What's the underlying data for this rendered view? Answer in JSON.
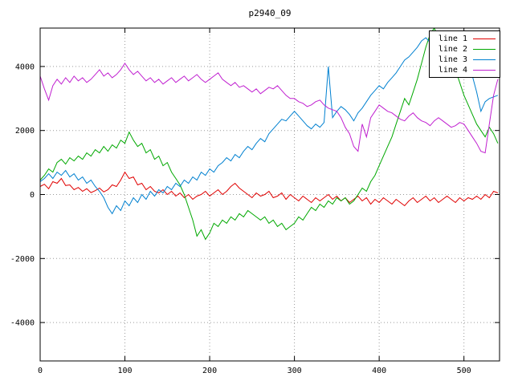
{
  "chart_data": {
    "type": "line",
    "title": "p2940_09",
    "xlabel": "",
    "ylabel": "",
    "xlim": [
      0,
      542
    ],
    "ylim": [
      -5200,
      5200
    ],
    "xticks": [
      0,
      100,
      200,
      300,
      400,
      500
    ],
    "yticks": [
      -4000,
      -2000,
      0,
      2000,
      4000
    ],
    "grid": true,
    "grid_style": "dotted",
    "legend_position": "top-right",
    "x_start": 0,
    "x_step": 5,
    "series": [
      {
        "name": "line 1",
        "color": "#e00000",
        "values": [
          250,
          320,
          180,
          400,
          350,
          500,
          280,
          300,
          150,
          220,
          100,
          180,
          60,
          120,
          200,
          80,
          150,
          300,
          250,
          450,
          700,
          500,
          550,
          300,
          350,
          150,
          250,
          100,
          50,
          150,
          0,
          100,
          -50,
          50,
          -100,
          0,
          -150,
          -50,
          0,
          100,
          -50,
          50,
          150,
          0,
          100,
          250,
          350,
          200,
          100,
          0,
          -100,
          50,
          -50,
          0,
          100,
          -100,
          -50,
          50,
          -150,
          0,
          -100,
          -200,
          -50,
          -150,
          -250,
          -100,
          -200,
          -100,
          0,
          -150,
          -50,
          -200,
          -100,
          -250,
          -150,
          -50,
          -200,
          -100,
          -300,
          -150,
          -250,
          -100,
          -200,
          -300,
          -150,
          -250,
          -350,
          -200,
          -100,
          -250,
          -150,
          -50,
          -200,
          -100,
          -250,
          -150,
          -50,
          -150,
          -250,
          -100,
          -200,
          -100,
          -150,
          -50,
          -150,
          0,
          -100,
          100,
          50
        ]
      },
      {
        "name": "line 2",
        "color": "#00a800",
        "values": [
          450,
          600,
          800,
          700,
          1000,
          1100,
          950,
          1150,
          1050,
          1200,
          1100,
          1300,
          1200,
          1400,
          1300,
          1500,
          1350,
          1550,
          1450,
          1700,
          1600,
          1950,
          1700,
          1500,
          1600,
          1300,
          1400,
          1100,
          1200,
          900,
          1000,
          700,
          500,
          300,
          0,
          -400,
          -800,
          -1300,
          -1100,
          -1400,
          -1200,
          -900,
          -1000,
          -800,
          -900,
          -700,
          -800,
          -600,
          -700,
          -500,
          -600,
          -700,
          -800,
          -700,
          -900,
          -800,
          -1000,
          -900,
          -1100,
          -1000,
          -900,
          -700,
          -800,
          -600,
          -400,
          -500,
          -300,
          -400,
          -200,
          -300,
          -100,
          -200,
          -100,
          -300,
          -200,
          0,
          200,
          100,
          400,
          600,
          900,
          1200,
          1500,
          1800,
          2200,
          2600,
          3000,
          2800,
          3200,
          3600,
          4100,
          4600,
          5000,
          5200,
          4900,
          5100,
          4700,
          4300,
          3900,
          3500,
          3100,
          2800,
          2500,
          2200,
          2000,
          1800,
          2100,
          1900,
          1600
        ]
      },
      {
        "name": "line 3",
        "color": "#0080d0",
        "values": [
          400,
          500,
          650,
          500,
          700,
          600,
          750,
          550,
          650,
          450,
          550,
          350,
          450,
          250,
          100,
          -100,
          -400,
          -600,
          -350,
          -500,
          -200,
          -350,
          -100,
          -250,
          0,
          -150,
          100,
          -50,
          150,
          50,
          250,
          150,
          350,
          250,
          450,
          350,
          550,
          450,
          700,
          600,
          800,
          700,
          900,
          1000,
          1150,
          1050,
          1250,
          1150,
          1350,
          1500,
          1400,
          1600,
          1750,
          1650,
          1900,
          2050,
          2200,
          2350,
          2300,
          2450,
          2600,
          2450,
          2300,
          2150,
          2050,
          2200,
          2100,
          2250,
          4000,
          2400,
          2600,
          2750,
          2650,
          2500,
          2300,
          2550,
          2700,
          2900,
          3100,
          3250,
          3400,
          3300,
          3500,
          3650,
          3800,
          4000,
          4200,
          4300,
          4450,
          4600,
          4800,
          4900,
          4750,
          4850,
          4700,
          4600,
          4500,
          4350,
          4300,
          4450,
          4600,
          4200,
          3700,
          3200,
          2600,
          2900,
          3000,
          3050,
          3100
        ]
      },
      {
        "name": "line 4",
        "color": "#c020d0",
        "values": [
          3700,
          3300,
          2950,
          3400,
          3600,
          3450,
          3650,
          3500,
          3700,
          3550,
          3650,
          3500,
          3600,
          3750,
          3900,
          3700,
          3800,
          3650,
          3750,
          3900,
          4100,
          3900,
          3750,
          3850,
          3700,
          3550,
          3650,
          3500,
          3600,
          3450,
          3550,
          3650,
          3500,
          3600,
          3700,
          3550,
          3650,
          3750,
          3600,
          3500,
          3600,
          3700,
          3800,
          3600,
          3500,
          3400,
          3500,
          3350,
          3400,
          3300,
          3200,
          3300,
          3150,
          3250,
          3350,
          3300,
          3400,
          3250,
          3100,
          3000,
          3000,
          2900,
          2850,
          2750,
          2800,
          2900,
          2950,
          2800,
          2700,
          2650,
          2600,
          2400,
          2100,
          1900,
          1500,
          1350,
          2200,
          1800,
          2400,
          2600,
          2800,
          2700,
          2600,
          2550,
          2450,
          2350,
          2300,
          2450,
          2550,
          2400,
          2300,
          2250,
          2150,
          2300,
          2400,
          2300,
          2200,
          2100,
          2150,
          2250,
          2200,
          2000,
          1800,
          1600,
          1350,
          1300,
          2200,
          3100,
          3600
        ]
      }
    ]
  }
}
